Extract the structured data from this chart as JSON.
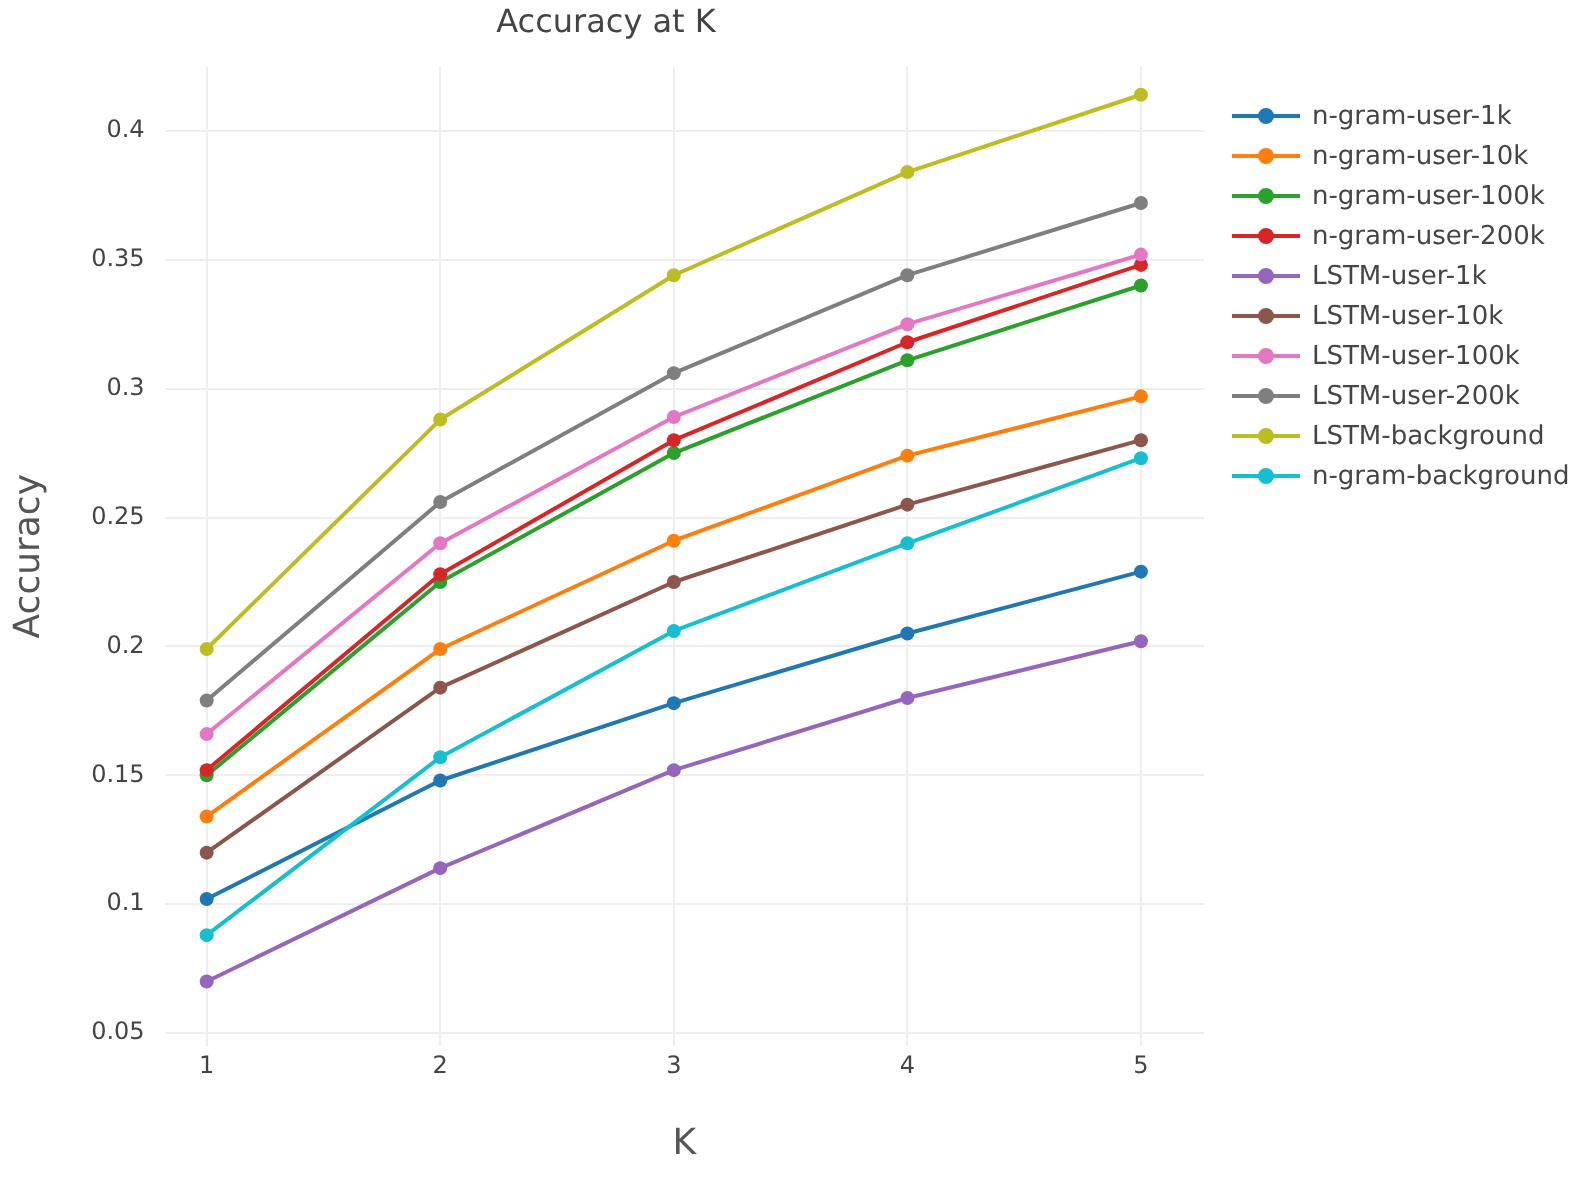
{
  "chart_data": {
    "type": "line",
    "title": "Accuracy at K",
    "xlabel": "K",
    "ylabel": "Accuracy",
    "x": [
      1,
      2,
      3,
      4,
      5
    ],
    "xlim": [
      0.82,
      5.27
    ],
    "xticks": [
      1,
      2,
      3,
      4,
      5
    ],
    "ylim": [
      0.045,
      0.425
    ],
    "yticks": [
      0.05,
      0.1,
      0.15,
      0.2,
      0.25,
      0.3,
      0.35,
      0.4
    ],
    "grid": true,
    "legend": "top right",
    "marker": "circle",
    "line_style": "solid",
    "series": [
      {
        "name": "n-gram-user-1k",
        "color": "#1f77b4",
        "values": [
          0.102,
          0.148,
          0.178,
          0.205,
          0.229
        ]
      },
      {
        "name": "n-gram-user-10k",
        "color": "#ff7f0e",
        "values": [
          0.134,
          0.199,
          0.241,
          0.274,
          0.297
        ]
      },
      {
        "name": "n-gram-user-100k",
        "color": "#2ca02c",
        "values": [
          0.15,
          0.225,
          0.275,
          0.311,
          0.34
        ]
      },
      {
        "name": "n-gram-user-200k",
        "color": "#d62728",
        "values": [
          0.152,
          0.228,
          0.28,
          0.318,
          0.348
        ]
      },
      {
        "name": "LSTM-user-1k",
        "color": "#9467bd",
        "values": [
          0.07,
          0.114,
          0.152,
          0.18,
          0.202
        ]
      },
      {
        "name": "LSTM-user-10k",
        "color": "#8c564b",
        "values": [
          0.12,
          0.184,
          0.225,
          0.255,
          0.28
        ]
      },
      {
        "name": "LSTM-user-100k",
        "color": "#e377c2",
        "values": [
          0.166,
          0.24,
          0.289,
          0.325,
          0.352
        ]
      },
      {
        "name": "LSTM-user-200k",
        "color": "#7f7f7f",
        "values": [
          0.179,
          0.256,
          0.306,
          0.344,
          0.372
        ]
      },
      {
        "name": "LSTM-background",
        "color": "#bcbd22",
        "values": [
          0.199,
          0.288,
          0.344,
          0.384,
          0.414
        ]
      },
      {
        "name": "n-gram-background",
        "color": "#17becf",
        "values": [
          0.088,
          0.157,
          0.206,
          0.24,
          0.273
        ]
      }
    ]
  }
}
